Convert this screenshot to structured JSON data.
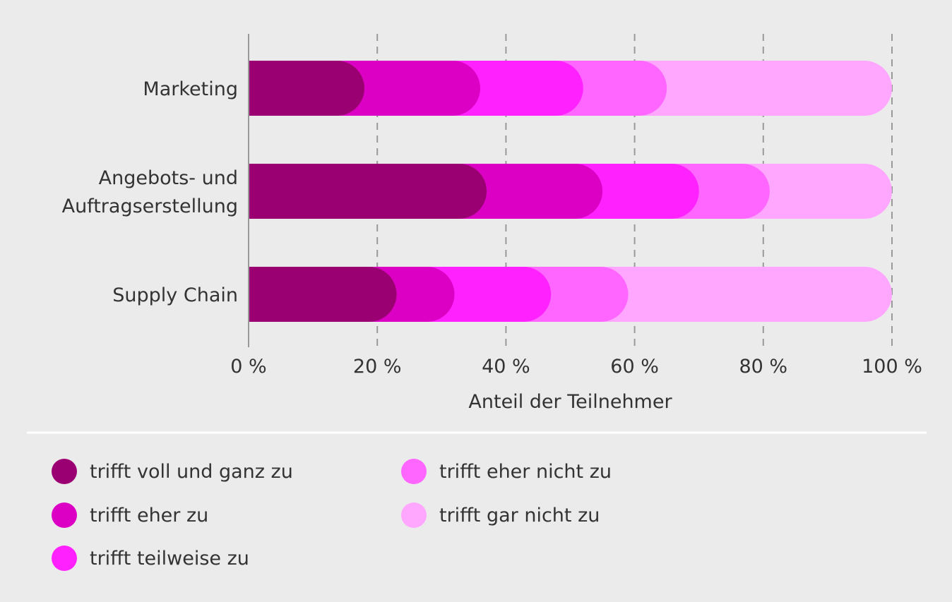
{
  "chart_data": {
    "type": "bar",
    "orientation": "horizontal",
    "stacked": true,
    "categories": [
      "Marketing",
      "Angebots- und Auftragserstellung",
      "Supply Chain"
    ],
    "category_lines": [
      [
        "Marketing"
      ],
      [
        "Angebots- und",
        "Auftragserstellung"
      ],
      [
        "Supply Chain"
      ]
    ],
    "series": [
      {
        "name": "trifft voll und ganz zu",
        "color": "#9b0072",
        "values": [
          18,
          37,
          23
        ]
      },
      {
        "name": "trifft eher zu",
        "color": "#dc00c4",
        "values": [
          18,
          18,
          9
        ]
      },
      {
        "name": "trifft teilweise zu",
        "color": "#ff22ff",
        "values": [
          16,
          15,
          15
        ]
      },
      {
        "name": "trifft eher nicht zu",
        "color": "#ff66ff",
        "values": [
          13,
          11,
          12
        ]
      },
      {
        "name": "trifft gar nicht zu",
        "color": "#ffa6ff",
        "values": [
          35,
          19,
          41
        ]
      }
    ],
    "xlabel": "Anteil der Teilnehmer",
    "xlim": [
      0,
      100
    ],
    "xticks": [
      "0 %",
      "20 %",
      "40 %",
      "60 %",
      "80 %",
      "100 %"
    ],
    "grid": "vertical dashed",
    "legend": "bottom"
  }
}
